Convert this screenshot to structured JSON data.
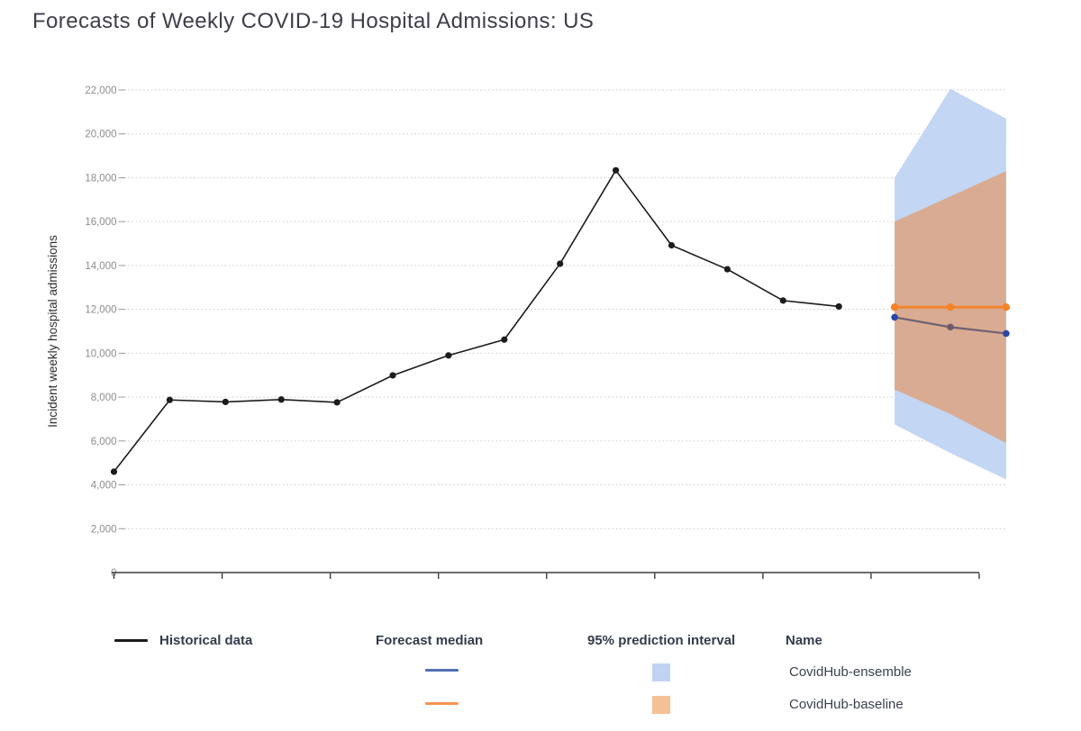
{
  "page": {
    "title": "Forecasts of Weekly COVID-19 Hospital Admissions: US"
  },
  "chart_data": {
    "type": "line",
    "title": "Forecasts of Weekly COVID-19 Hospital Admissions: US",
    "xlabel": "",
    "ylabel": "Incident weekly hospital admissions",
    "ylim": [
      0,
      22000
    ],
    "ytick_interval": 2000,
    "ytick_labels": [
      "0",
      "2,000",
      "4,000",
      "6,000",
      "8,000",
      "10,000",
      "12,000",
      "14,000",
      "16,000",
      "18,000",
      "20,000",
      "22,000"
    ],
    "x_tick_labels": [],
    "x_axis_labels_visible": false,
    "grid": {
      "horizontal": true,
      "style": "dotted",
      "color": "#c9c9c9"
    },
    "layout_hints": {
      "historical_weeks": 14,
      "forecast_weeks": 3,
      "legend_position": "bottom"
    },
    "series": [
      {
        "name": "Historical data",
        "role": "historical",
        "style": "line+markers",
        "color": "#1c1c1c",
        "values": [
          4600,
          7870,
          7780,
          7890,
          7760,
          8990,
          9900,
          10620,
          14080,
          18340,
          14920,
          13830,
          12400,
          12130
        ]
      },
      {
        "name": "CovidHub-ensemble",
        "role": "forecast",
        "median": [
          11640,
          11190,
          10900
        ],
        "lower95": [
          6750,
          5450,
          4250
        ],
        "upper95": [
          18000,
          22050,
          20700
        ],
        "median_line_color": "#6f6172",
        "median_dot_colors": [
          "#2c47a5",
          "#73596b",
          "#2c47a5"
        ],
        "band_color": "#c3d6f3"
      },
      {
        "name": "CovidHub-baseline",
        "role": "forecast",
        "median": [
          12100,
          12100,
          12100
        ],
        "lower95": [
          8340,
          7230,
          5900
        ],
        "upper95": [
          16000,
          17150,
          18300
        ],
        "median_line_color": "#f5832a",
        "median_dot_colors": [
          "#f5832a",
          "#f5832a",
          "#f5832a"
        ],
        "band_color": "#d9ab92"
      }
    ]
  },
  "legend": {
    "historical": {
      "label": "Historical data",
      "swatch_color": "#1c1c1c"
    },
    "median_header": "Forecast median",
    "interval_header": "95% prediction interval",
    "name_header": "Name",
    "models": [
      {
        "name": "CovidHub-ensemble",
        "median_color": "#5470b5",
        "interval_color": "#c0d3f2"
      },
      {
        "name": "CovidHub-baseline",
        "median_color": "#f89552",
        "interval_color": "#f6c095"
      }
    ]
  }
}
